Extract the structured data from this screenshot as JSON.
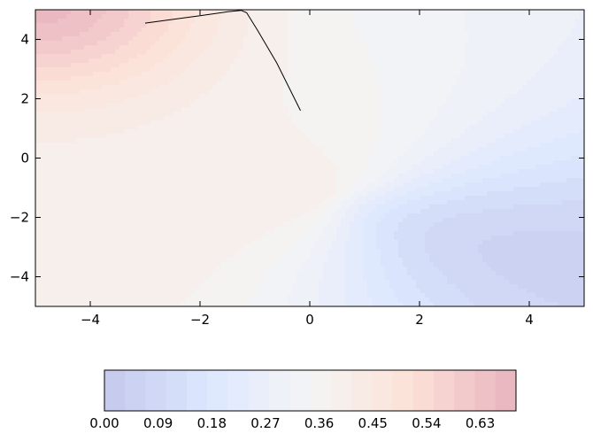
{
  "chart_data": {
    "type": "heatmap",
    "subtype": "filled-contour",
    "title": "",
    "xlabel": "",
    "ylabel": "",
    "xlim": [
      -5,
      5
    ],
    "ylim": [
      -5,
      5
    ],
    "x_ticks": [
      -4,
      -2,
      0,
      2,
      4
    ],
    "x_tick_labels": [
      "−4",
      "−2",
      "0",
      "2",
      "4"
    ],
    "y_ticks": [
      -4,
      -2,
      0,
      2,
      4
    ],
    "y_tick_labels": [
      "−4",
      "−2",
      "0",
      "2",
      "4"
    ],
    "grid": false,
    "colormap": "coolwarm",
    "alpha": 0.3,
    "levels": [
      0.0,
      0.0345,
      0.069,
      0.1035,
      0.138,
      0.1725,
      0.207,
      0.2415,
      0.276,
      0.3105,
      0.345,
      0.3795,
      0.414,
      0.4485,
      0.483,
      0.5175,
      0.552,
      0.5865,
      0.621,
      0.6555,
      0.69
    ],
    "colorbar": {
      "orientation": "horizontal",
      "location": "bottom",
      "ticks": [
        0.0,
        0.09,
        0.18,
        0.27,
        0.36,
        0.45,
        0.54,
        0.63
      ],
      "tick_labels": [
        "0.00",
        "0.09",
        "0.18",
        "0.27",
        "0.36",
        "0.45",
        "0.54",
        "0.63"
      ],
      "min": 0.0,
      "max": 0.69
    },
    "path": {
      "color": "#000000",
      "points": [
        [
          -3.0,
          4.55
        ],
        [
          -2.6,
          4.65
        ],
        [
          -2.0,
          4.8
        ],
        [
          -1.5,
          4.93
        ],
        [
          -1.25,
          4.98
        ],
        [
          -1.15,
          4.9
        ],
        [
          -0.95,
          4.3
        ],
        [
          -0.6,
          3.2
        ],
        [
          -0.17,
          1.6
        ]
      ]
    }
  }
}
